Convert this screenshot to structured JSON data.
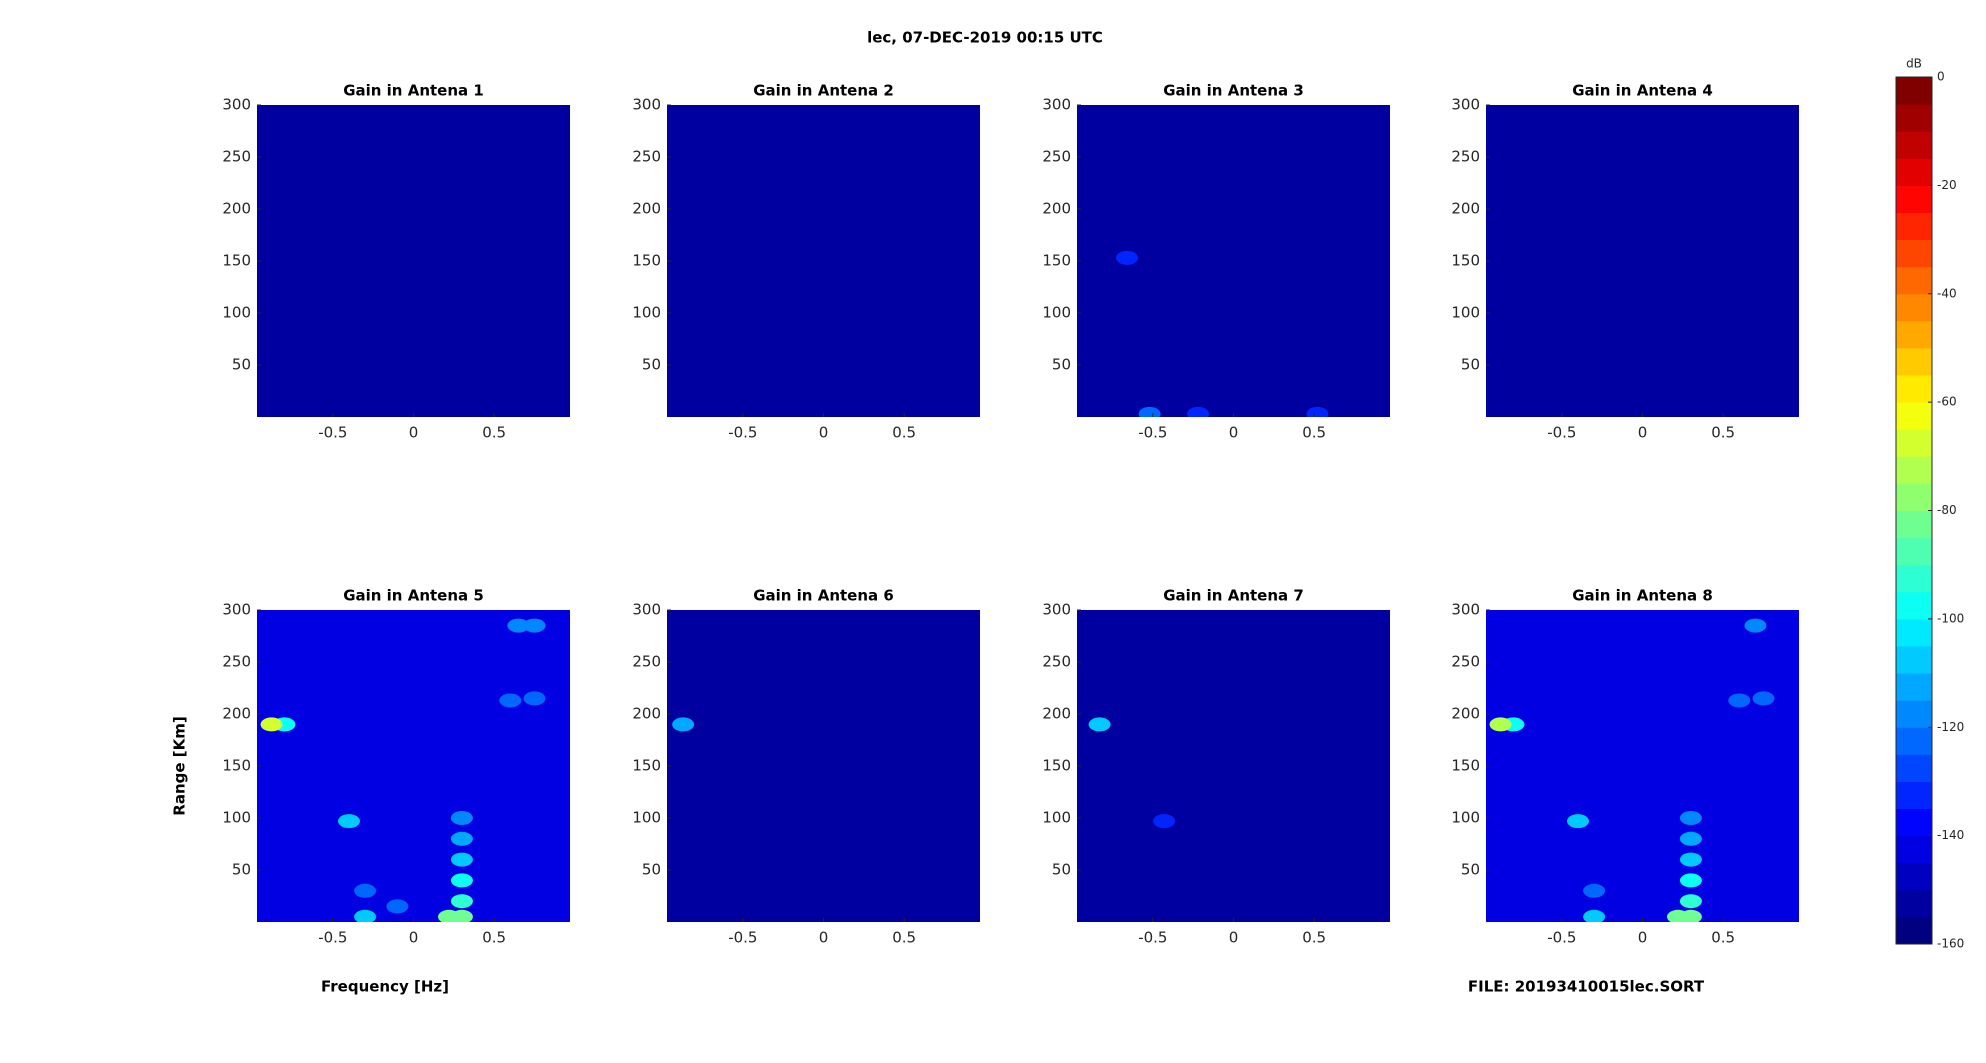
{
  "chart_data": {
    "type": "heatmap",
    "title": "lec, 07-DEC-2019 00:15 UTC",
    "xlabel": "Frequency [Hz]",
    "ylabel": "Range [Km]",
    "file_note": "FILE: 20193410015lec.SORT",
    "colorbar_label": "dB",
    "clim": [
      -160,
      0
    ],
    "cticks": [
      0,
      -20,
      -40,
      -60,
      -80,
      -100,
      -120,
      -140,
      -160
    ],
    "xlim": [
      -0.97,
      0.97
    ],
    "xticks": [
      -0.5,
      0,
      0.5
    ],
    "ylim": [
      0,
      300
    ],
    "yticks": [
      50,
      100,
      150,
      200,
      250,
      300
    ],
    "panels": [
      {
        "title": "Gain in Antena 1",
        "background": -152,
        "spots": []
      },
      {
        "title": "Gain in Antena 2",
        "background": -152,
        "spots": []
      },
      {
        "title": "Gain in Antena 3",
        "background": -152,
        "spots": [
          {
            "x": -0.66,
            "y": 153,
            "value": -132
          },
          {
            "x": -0.52,
            "y": 3,
            "value": -125
          },
          {
            "x": -0.22,
            "y": 3,
            "value": -132
          },
          {
            "x": 0.52,
            "y": 3,
            "value": -132
          }
        ]
      },
      {
        "title": "Gain in Antena 4",
        "background": -152,
        "spots": []
      },
      {
        "title": "Gain in Antena 5",
        "background": -145,
        "spots": [
          {
            "x": -0.8,
            "y": 190,
            "value": -100
          },
          {
            "x": -0.88,
            "y": 190,
            "value": -70
          },
          {
            "x": -0.4,
            "y": 97,
            "value": -110
          },
          {
            "x": 0.65,
            "y": 285,
            "value": -120
          },
          {
            "x": 0.75,
            "y": 285,
            "value": -120
          },
          {
            "x": 0.6,
            "y": 213,
            "value": -122
          },
          {
            "x": 0.75,
            "y": 215,
            "value": -122
          },
          {
            "x": 0.3,
            "y": 100,
            "value": -120
          },
          {
            "x": 0.3,
            "y": 80,
            "value": -115
          },
          {
            "x": 0.3,
            "y": 60,
            "value": -110
          },
          {
            "x": 0.3,
            "y": 40,
            "value": -100
          },
          {
            "x": 0.3,
            "y": 20,
            "value": -92
          },
          {
            "x": 0.3,
            "y": 5,
            "value": -85
          },
          {
            "x": 0.22,
            "y": 5,
            "value": -82
          },
          {
            "x": -0.3,
            "y": 5,
            "value": -110
          },
          {
            "x": -0.3,
            "y": 30,
            "value": -125
          },
          {
            "x": -0.1,
            "y": 15,
            "value": -122
          }
        ]
      },
      {
        "title": "Gain in Antena 6",
        "background": -152,
        "spots": [
          {
            "x": -0.87,
            "y": 190,
            "value": -115
          }
        ]
      },
      {
        "title": "Gain in Antena 7",
        "background": -152,
        "spots": [
          {
            "x": -0.83,
            "y": 190,
            "value": -110
          },
          {
            "x": -0.43,
            "y": 97,
            "value": -132
          }
        ]
      },
      {
        "title": "Gain in Antena 8",
        "background": -145,
        "spots": [
          {
            "x": -0.8,
            "y": 190,
            "value": -100
          },
          {
            "x": -0.88,
            "y": 190,
            "value": -75
          },
          {
            "x": -0.4,
            "y": 97,
            "value": -108
          },
          {
            "x": 0.7,
            "y": 285,
            "value": -120
          },
          {
            "x": 0.6,
            "y": 213,
            "value": -122
          },
          {
            "x": 0.75,
            "y": 215,
            "value": -122
          },
          {
            "x": 0.3,
            "y": 100,
            "value": -120
          },
          {
            "x": 0.3,
            "y": 80,
            "value": -115
          },
          {
            "x": 0.3,
            "y": 60,
            "value": -110
          },
          {
            "x": 0.3,
            "y": 40,
            "value": -100
          },
          {
            "x": 0.3,
            "y": 20,
            "value": -92
          },
          {
            "x": 0.3,
            "y": 5,
            "value": -85
          },
          {
            "x": 0.22,
            "y": 5,
            "value": -82
          },
          {
            "x": -0.3,
            "y": 5,
            "value": -110
          },
          {
            "x": -0.3,
            "y": 30,
            "value": -125
          }
        ]
      }
    ]
  }
}
